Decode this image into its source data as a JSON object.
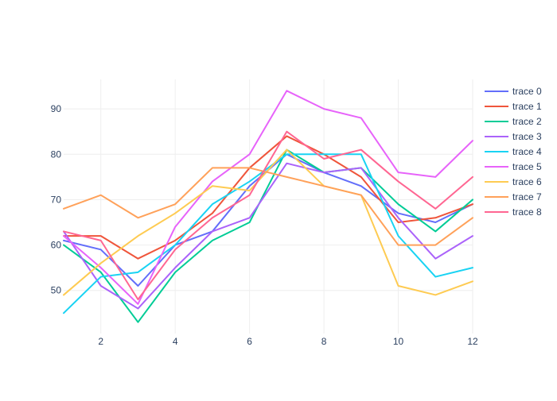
{
  "chart_data": {
    "type": "line",
    "title": "",
    "xlabel": "",
    "ylabel": "",
    "x": [
      1,
      2,
      3,
      4,
      5,
      6,
      7,
      8,
      9,
      10,
      11,
      12
    ],
    "xlim": [
      1,
      12
    ],
    "ylim": [
      40.5,
      96.5
    ],
    "x_ticks": [
      2,
      4,
      6,
      8,
      10,
      12
    ],
    "y_ticks": [
      50,
      60,
      70,
      80,
      90
    ],
    "grid": true,
    "legend_position": "right",
    "series": [
      {
        "name": "trace 0",
        "color": "#636efa",
        "values": [
          61,
          59,
          51,
          60,
          63,
          73,
          80,
          76,
          73,
          67,
          65,
          69
        ]
      },
      {
        "name": "trace 1",
        "color": "#EF553B",
        "values": [
          62,
          62,
          57,
          61,
          67,
          77,
          84,
          80,
          75,
          65,
          66,
          69
        ]
      },
      {
        "name": "trace 2",
        "color": "#00cc96",
        "values": [
          60,
          54,
          43,
          54,
          61,
          65,
          81,
          76,
          77,
          69,
          63,
          70
        ]
      },
      {
        "name": "trace 3",
        "color": "#ab63fa",
        "values": [
          63,
          51,
          46,
          55,
          63,
          66,
          78,
          76,
          77,
          66,
          57,
          62
        ]
      },
      {
        "name": "trace 4",
        "color": "#19d3f3",
        "values": [
          45,
          53,
          54,
          60,
          69,
          74,
          80,
          80,
          80,
          62,
          53,
          55
        ]
      },
      {
        "name": "trace 5",
        "color": "#e763fa",
        "values": [
          62,
          55,
          47,
          64,
          74,
          80,
          94,
          90,
          88,
          76,
          75,
          83
        ]
      },
      {
        "name": "trace 6",
        "color": "#FECB52",
        "values": [
          49,
          56,
          62,
          67,
          73,
          72,
          81,
          73,
          71,
          51,
          49,
          52
        ]
      },
      {
        "name": "trace 7",
        "color": "#FFA15A",
        "values": [
          68,
          71,
          66,
          69,
          77,
          77,
          75,
          73,
          71,
          60,
          60,
          66
        ]
      },
      {
        "name": "trace 8",
        "color": "#FF6692",
        "values": [
          63,
          61,
          48,
          59,
          66,
          71,
          85,
          79,
          81,
          74,
          68,
          75
        ]
      }
    ]
  }
}
